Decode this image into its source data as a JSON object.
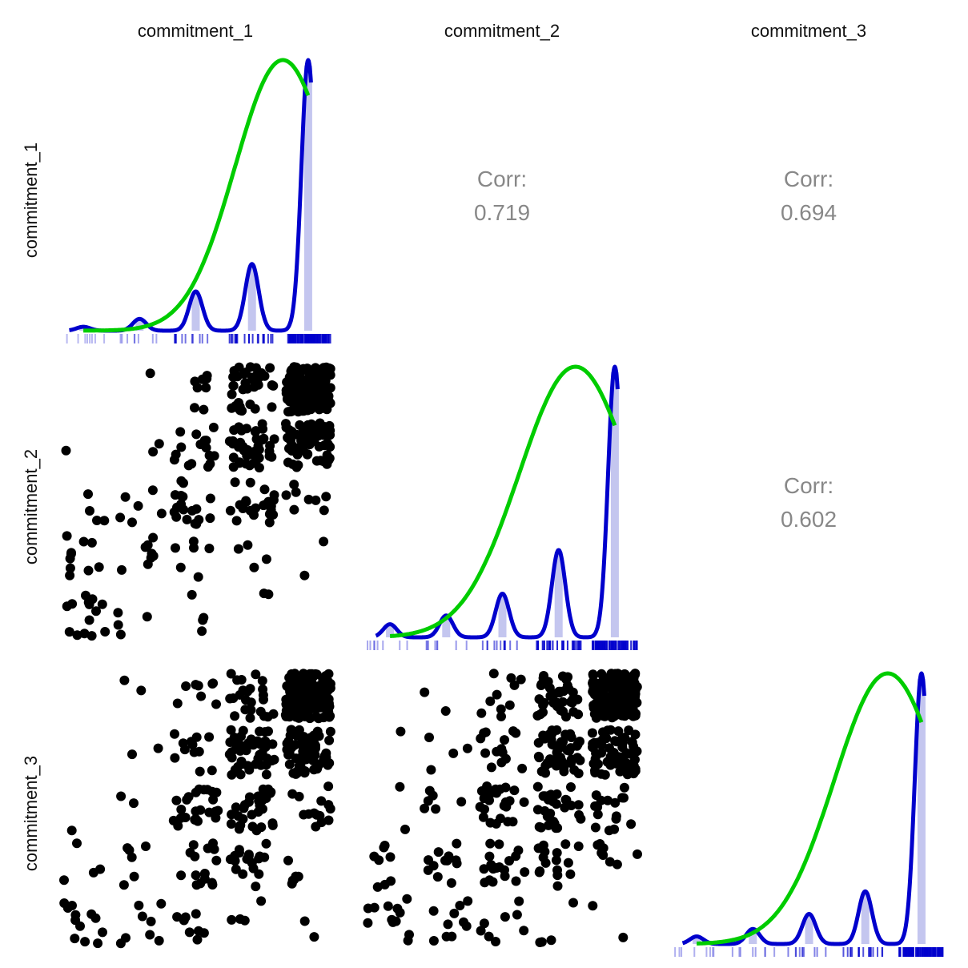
{
  "chart_data": {
    "type": "scatter-matrix",
    "variables": [
      "commitment_1",
      "commitment_2",
      "commitment_3"
    ],
    "levels": [
      1,
      2,
      3,
      4,
      5
    ],
    "value_range": [
      0.6,
      5.4
    ],
    "correlations": [
      {
        "row": 0,
        "col": 1,
        "label": "Corr:",
        "value": "0.719"
      },
      {
        "row": 0,
        "col": 2,
        "label": "Corr:",
        "value": "0.694"
      },
      {
        "row": 1,
        "col": 2,
        "label": "Corr:",
        "value": "0.602"
      }
    ],
    "histograms": [
      {
        "variable": "commitment_1",
        "proportions": [
          0.01,
          0.03,
          0.1,
          0.17,
          0.69
        ]
      },
      {
        "variable": "commitment_2",
        "proportions": [
          0.03,
          0.05,
          0.1,
          0.2,
          0.62
        ]
      },
      {
        "variable": "commitment_3",
        "proportions": [
          0.02,
          0.04,
          0.08,
          0.14,
          0.72
        ]
      }
    ],
    "normal_fits": [
      {
        "variable": "commitment_1",
        "mean": 4.55,
        "sd": 0.85
      },
      {
        "variable": "commitment_2",
        "mean": 4.3,
        "sd": 1.0
      },
      {
        "variable": "commitment_3",
        "mean": 4.4,
        "sd": 0.95
      }
    ],
    "pair_counts": [
      {
        "row": "commitment_2",
        "col": "commitment_1",
        "counts": [
          [
            14,
            4,
            4,
            2,
            0
          ],
          [
            10,
            8,
            6,
            4,
            2
          ],
          [
            4,
            6,
            18,
            22,
            8
          ],
          [
            1,
            2,
            16,
            40,
            70
          ],
          [
            0,
            1,
            8,
            40,
            160
          ]
        ]
      },
      {
        "row": "commitment_3",
        "col": "commitment_1",
        "counts": [
          [
            12,
            8,
            8,
            4,
            2
          ],
          [
            4,
            6,
            16,
            18,
            6
          ],
          [
            1,
            2,
            24,
            30,
            14
          ],
          [
            0,
            2,
            12,
            48,
            70
          ],
          [
            0,
            2,
            8,
            24,
            170
          ]
        ]
      },
      {
        "row": "commitment_3",
        "col": "commitment_2",
        "counts": [
          [
            12,
            10,
            8,
            4,
            2
          ],
          [
            8,
            12,
            18,
            16,
            8
          ],
          [
            2,
            6,
            24,
            28,
            16
          ],
          [
            1,
            4,
            14,
            50,
            60
          ],
          [
            0,
            2,
            10,
            40,
            170
          ]
        ]
      }
    ],
    "colors": {
      "points": "#000000",
      "density": "#0000cc",
      "normal_fit": "#00cc00",
      "histogram": "#c4c6ef",
      "rug": "#0000cc",
      "corr_text": "#888888"
    }
  }
}
